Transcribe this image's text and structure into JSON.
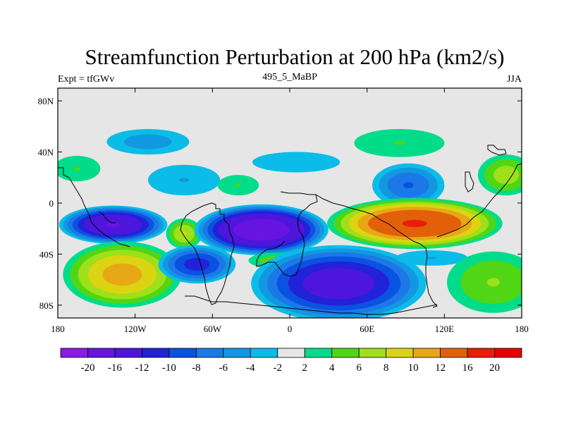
{
  "chart_data": {
    "type": "heatmap",
    "title": "Streamfunction Perturbation at 200 hPa (km2/s)",
    "left_label": "Expt = tfGWv",
    "center_label": "495_5_MaBP",
    "right_label": "JJA",
    "x_tick_labels": [
      "180",
      "120W",
      "60W",
      "0",
      "60E",
      "120E",
      "180"
    ],
    "x_tick_values": [
      -180,
      -120,
      -60,
      0,
      60,
      120,
      180
    ],
    "y_tick_labels": [
      "80N",
      "40N",
      "0",
      "40S",
      "80S"
    ],
    "y_tick_values": [
      80,
      40,
      0,
      -40,
      -80
    ],
    "xlim": [
      -180,
      180
    ],
    "ylim": [
      -90,
      90
    ],
    "colorbar": {
      "labels": [
        "-20",
        "-16",
        "-12",
        "-10",
        "-8",
        "-6",
        "-4",
        "-2",
        "2",
        "4",
        "6",
        "8",
        "10",
        "12",
        "16",
        "20"
      ],
      "levels": [
        -20,
        -16,
        -12,
        -10,
        -8,
        -6,
        -4,
        -2,
        2,
        4,
        6,
        8,
        10,
        12,
        16,
        20
      ],
      "colors": [
        "#8a1ce6",
        "#6814e0",
        "#4e16dc",
        "#2222d8",
        "#0a52e2",
        "#1c78e6",
        "#1298e0",
        "#0cbce8",
        "#e6e6e6",
        "#00dc8a",
        "#50d614",
        "#9ee01a",
        "#dcd412",
        "#e6a814",
        "#e2600a",
        "#e81e08",
        "#e60000"
      ]
    },
    "fields": [
      {
        "lon": -110,
        "lat": 48,
        "value": -5,
        "rlon": 32,
        "rlat": 10
      },
      {
        "lon": -165,
        "lat": 27,
        "value": 4,
        "rlon": 18,
        "rlat": 10
      },
      {
        "lon": -82,
        "lat": 18,
        "value": -4,
        "rlon": 28,
        "rlat": 12
      },
      {
        "lon": -40,
        "lat": 14,
        "value": 4,
        "rlon": 16,
        "rlat": 8
      },
      {
        "lon": 5,
        "lat": 32,
        "value": -2,
        "rlon": 34,
        "rlat": 8
      },
      {
        "lon": 85,
        "lat": 47,
        "value": 4,
        "rlon": 35,
        "rlat": 11
      },
      {
        "lon": 92,
        "lat": 14,
        "value": -8,
        "rlon": 28,
        "rlat": 17
      },
      {
        "lon": 168,
        "lat": 22,
        "value": 7,
        "rlon": 22,
        "rlat": 16
      },
      {
        "lon": -137,
        "lat": -17,
        "value": -16,
        "rlon": 42,
        "rlat": 15
      },
      {
        "lon": -82,
        "lat": -24,
        "value": 8,
        "rlon": 14,
        "rlat": 12
      },
      {
        "lon": -22,
        "lat": -21,
        "value": -19,
        "rlon": 52,
        "rlat": 20
      },
      {
        "lon": 97,
        "lat": -16,
        "value": 16,
        "rlon": 68,
        "rlat": 20
      },
      {
        "lon": -130,
        "lat": -56,
        "value": 11,
        "rlon": 46,
        "rlat": 26
      },
      {
        "lon": -72,
        "lat": -48,
        "value": -11,
        "rlon": 30,
        "rlat": 15
      },
      {
        "lon": -12,
        "lat": -45,
        "value": 5,
        "rlon": 20,
        "rlat": 6
      },
      {
        "lon": 38,
        "lat": -63,
        "value": -14,
        "rlon": 68,
        "rlat": 30
      },
      {
        "lon": 110,
        "lat": -43,
        "value": -4,
        "rlon": 28,
        "rlat": 6
      },
      {
        "lon": 158,
        "lat": -62,
        "value": 6,
        "rlon": 36,
        "rlat": 24
      }
    ]
  }
}
